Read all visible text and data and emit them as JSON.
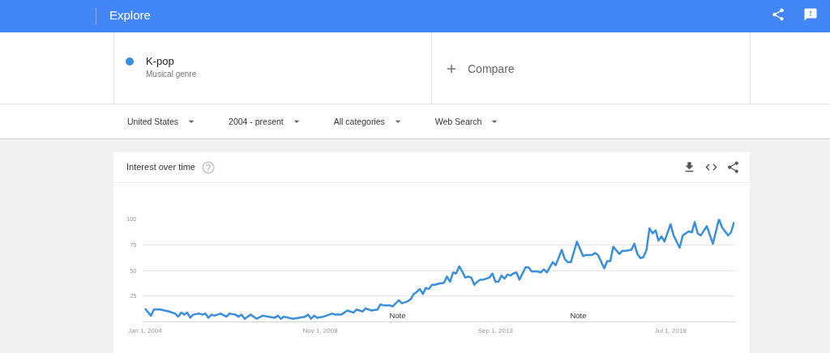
{
  "chart_data": {
    "type": "line",
    "title": "Interest over time",
    "annotations": [
      "Explore",
      "Musical genre",
      "Compare",
      "United States",
      "2004 - present",
      "All categories",
      "Web Search",
      "Note",
      "Note"
    ],
    "x": [
      "2004-01",
      "2004-03",
      "2004-04",
      "2004-06",
      "2004-09",
      "2004-11",
      "2004-12",
      "2005-01",
      "2005-02",
      "2005-03",
      "2005-04",
      "2005-05",
      "2005-07",
      "2005-08",
      "2005-09",
      "2005-10",
      "2005-11",
      "2005-12",
      "2006-02",
      "2006-04",
      "2006-05",
      "2006-07",
      "2006-08",
      "2006-09",
      "2006-10",
      "2006-12",
      "2007-02",
      "2007-04",
      "2007-06",
      "2007-08",
      "2007-09",
      "2007-10",
      "2007-11",
      "2008-02",
      "2008-04",
      "2008-06",
      "2008-07",
      "2008-08",
      "2008-09",
      "2008-10",
      "2008-12",
      "2009-03",
      "2009-04",
      "2009-06",
      "2009-08",
      "2009-10",
      "2009-11",
      "2010-01",
      "2010-02",
      "2010-04",
      "2010-06",
      "2010-07",
      "2010-08",
      "2010-10",
      "2010-11",
      "2011-01",
      "2011-02",
      "2011-04",
      "2011-05",
      "2011-06",
      "2011-07",
      "2011-08",
      "2011-09",
      "2011-10",
      "2011-11",
      "2011-12",
      "2012-01",
      "2012-02",
      "2012-04",
      "2012-05",
      "2012-06",
      "2012-07",
      "2012-08",
      "2012-09",
      "2012-10",
      "2012-11",
      "2012-12",
      "2013-01",
      "2013-02",
      "2013-03",
      "2013-04",
      "2013-05",
      "2013-07",
      "2013-08",
      "2013-09",
      "2013-10",
      "2013-11",
      "2013-12",
      "2014-01",
      "2014-02",
      "2014-03",
      "2014-04",
      "2014-05",
      "2014-06",
      "2014-07",
      "2014-08",
      "2014-09",
      "2014-11",
      "2014-12",
      "2015-01",
      "2015-02",
      "2015-04",
      "2015-05",
      "2015-07",
      "2015-08",
      "2015-09",
      "2015-10",
      "2015-12",
      "2016-02",
      "2016-03",
      "2016-05",
      "2016-06",
      "2016-07",
      "2016-09",
      "2016-10",
      "2016-11",
      "2016-12",
      "2017-02",
      "2017-03",
      "2017-04",
      "2017-06",
      "2017-07",
      "2017-08",
      "2017-09",
      "2017-10",
      "2017-11",
      "2017-12",
      "2018-01",
      "2018-02",
      "2018-03",
      "2018-04",
      "2018-05",
      "2018-07",
      "2018-08",
      "2018-10",
      "2018-11",
      "2019-01",
      "2019-02",
      "2019-03",
      "2019-04",
      "2019-05",
      "2019-07",
      "2019-09",
      "2019-11",
      "2019-12",
      "2020-02",
      "2020-03",
      "2020-04"
    ],
    "series": [
      {
        "name": "K-pop",
        "color": "#3a8ee0",
        "values": [
          13,
          6,
          12,
          12,
          10,
          8,
          5,
          9,
          7,
          9,
          4,
          7,
          8,
          7,
          8,
          4,
          7,
          6,
          8,
          5,
          8,
          7,
          5,
          7,
          3,
          7,
          3,
          6,
          5,
          4,
          6,
          3,
          5,
          3,
          4,
          5,
          7,
          3,
          6,
          4,
          5,
          8,
          7,
          7,
          11,
          9,
          12,
          10,
          13,
          11,
          12,
          17,
          16,
          16,
          15,
          21,
          18,
          20,
          22,
          27,
          29,
          32,
          27,
          33,
          32,
          36,
          36,
          37,
          38,
          44,
          39,
          48,
          47,
          54,
          49,
          43,
          44,
          43,
          36,
          39,
          41,
          41,
          43,
          47,
          39,
          39,
          45,
          42,
          46,
          45,
          47,
          48,
          41,
          47,
          53,
          53,
          49,
          49,
          48,
          51,
          48,
          58,
          55,
          70,
          61,
          58,
          58,
          78,
          64,
          65,
          65,
          67,
          65,
          52,
          59,
          59,
          73,
          66,
          69,
          69,
          70,
          76,
          66,
          62,
          63,
          70,
          91,
          86,
          89,
          79,
          83,
          78,
          95,
          84,
          72,
          84,
          88,
          87,
          97,
          86,
          84,
          93,
          76,
          100,
          92,
          84,
          87,
          97
        ]
      }
    ],
    "xlim": [
      "2003-12-05",
      "2020-04-08"
    ],
    "xticks": [
      {
        "value": "2004-01-01",
        "label": "Jan 1, 2004"
      },
      {
        "value": "2008-11-01",
        "label": "Nov 1, 2008"
      },
      {
        "value": "2013-09-01",
        "label": "Sep 1, 2013"
      },
      {
        "value": "2018-07-01",
        "label": "Jul 1, 2018"
      }
    ],
    "ylim": [
      0,
      100
    ],
    "yticks": [
      25,
      50,
      75,
      100
    ],
    "grid": "y",
    "legend": "top left"
  }
}
